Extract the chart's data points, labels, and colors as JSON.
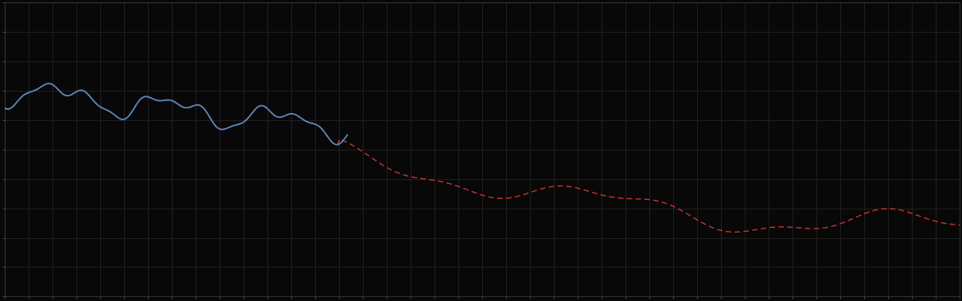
{
  "background_color": "#080808",
  "plot_bg_color": "#080808",
  "grid_color": "#2a2a2a",
  "line1_color": "#5588bb",
  "line2_color": "#cc3333",
  "figsize": [
    12.09,
    3.78
  ],
  "dpi": 100,
  "xlim": [
    0,
    100
  ],
  "ylim": [
    0,
    10
  ],
  "n_xcells": 40,
  "n_ycells": 10
}
